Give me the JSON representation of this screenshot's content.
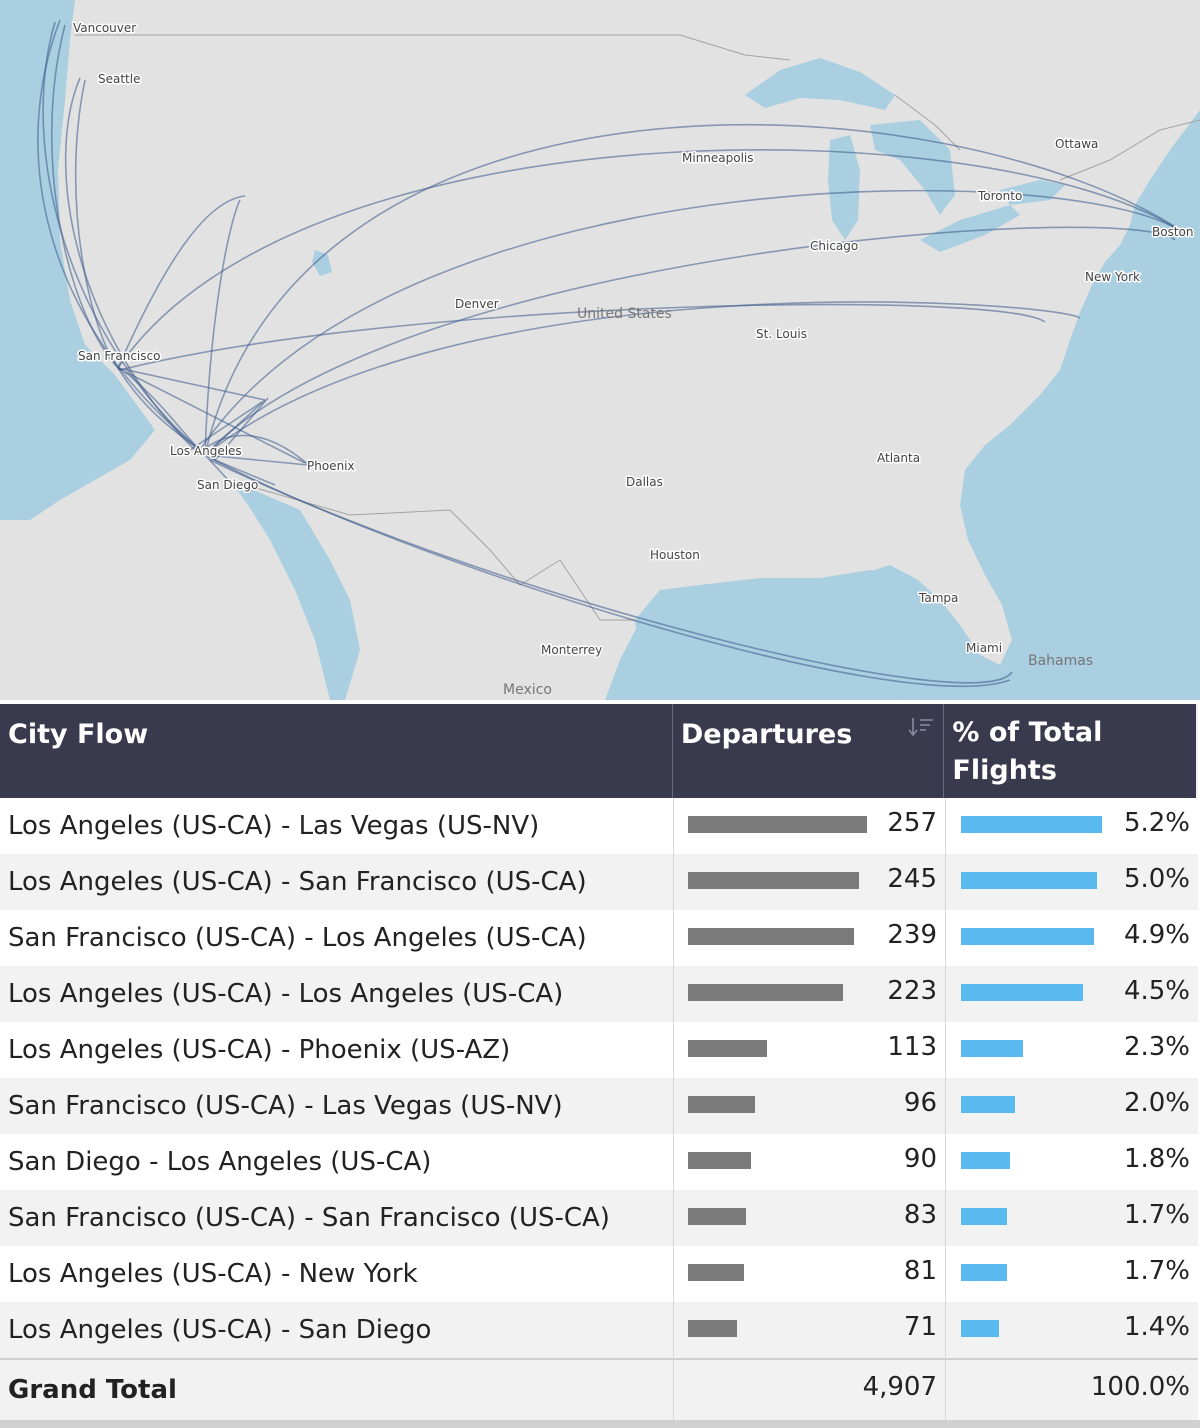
{
  "map": {
    "country_labels": [
      "United States",
      "Mexico",
      "Bahamas"
    ],
    "city_labels": [
      "Vancouver",
      "Seattle",
      "San Francisco",
      "Los Angeles",
      "San Diego",
      "Phoenix",
      "Denver",
      "Minneapolis",
      "Chicago",
      "St. Louis",
      "Dallas",
      "Houston",
      "Atlanta",
      "Tampa",
      "Miami",
      "Monterrey",
      "Ottawa",
      "Toronto",
      "Boston",
      "New York"
    ],
    "colors": {
      "water": "#a9cfe0",
      "land": "#e2e2e2",
      "flow": "#3d5a8a"
    }
  },
  "table": {
    "headers": {
      "flow": "City Flow",
      "departures": "Departures",
      "pct": "% of Total Flights"
    },
    "rows": [
      {
        "flow": "Los Angeles (US-CA) - Las Vegas (US-NV)",
        "departures": "257",
        "pct": "5.2%",
        "dep_value": 257,
        "pct_value": 5.2
      },
      {
        "flow": "Los Angeles (US-CA) - San Francisco (US-CA)",
        "departures": "245",
        "pct": "5.0%",
        "dep_value": 245,
        "pct_value": 5.0
      },
      {
        "flow": "San Francisco (US-CA) - Los Angeles (US-CA)",
        "departures": "239",
        "pct": "4.9%",
        "dep_value": 239,
        "pct_value": 4.9
      },
      {
        "flow": "Los Angeles (US-CA) - Los Angeles (US-CA)",
        "departures": "223",
        "pct": "4.5%",
        "dep_value": 223,
        "pct_value": 4.5
      },
      {
        "flow": "Los Angeles (US-CA) - Phoenix (US-AZ)",
        "departures": "113",
        "pct": "2.3%",
        "dep_value": 113,
        "pct_value": 2.3
      },
      {
        "flow": "San Francisco (US-CA) - Las Vegas (US-NV)",
        "departures": "96",
        "pct": "2.0%",
        "dep_value": 96,
        "pct_value": 2.0
      },
      {
        "flow": "San Diego - Los Angeles (US-CA)",
        "departures": "90",
        "pct": "1.8%",
        "dep_value": 90,
        "pct_value": 1.8
      },
      {
        "flow": "San Francisco (US-CA) - San Francisco (US-CA)",
        "departures": "83",
        "pct": "1.7%",
        "dep_value": 83,
        "pct_value": 1.7
      },
      {
        "flow": "Los Angeles (US-CA) - New York",
        "departures": "81",
        "pct": "1.7%",
        "dep_value": 81,
        "pct_value": 1.7
      },
      {
        "flow": "Los Angeles (US-CA) - San Diego",
        "departures": "71",
        "pct": "1.4%",
        "dep_value": 71,
        "pct_value": 1.4
      }
    ],
    "total": {
      "label": "Grand Total",
      "departures": "4,907",
      "pct": "100.0%"
    }
  }
}
